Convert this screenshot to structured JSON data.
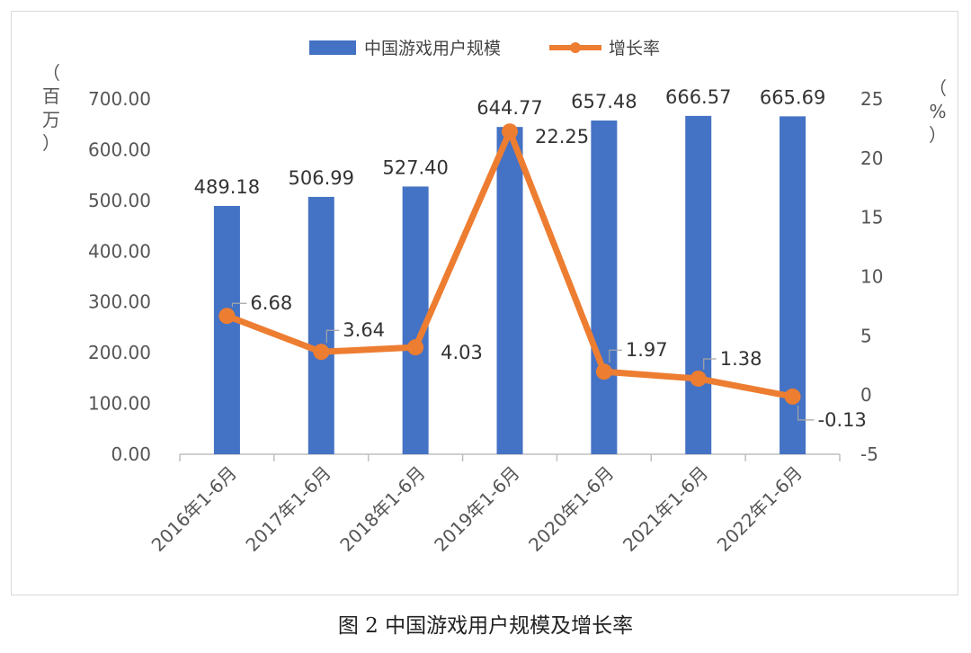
{
  "caption": "图 2 中国游戏用户规模及增长率",
  "chart_data": {
    "type": "bar+line",
    "categories": [
      "2016年1-6月",
      "2017年1-6月",
      "2018年1-6月",
      "2019年1-6月",
      "2020年1-6月",
      "2021年1-6月",
      "2022年1-6月"
    ],
    "series": [
      {
        "name": "中国游戏用户规模",
        "type": "bar",
        "axis": "left",
        "color": "#4472C4",
        "values": [
          489.18,
          506.99,
          527.4,
          644.77,
          657.48,
          666.57,
          665.69
        ],
        "labels": [
          "489.18",
          "506.99",
          "527.40",
          "644.77",
          "657.48",
          "666.57",
          "665.69"
        ]
      },
      {
        "name": "增长率",
        "type": "line",
        "axis": "right",
        "color": "#ED7D31",
        "values": [
          6.68,
          3.64,
          4.03,
          22.25,
          1.97,
          1.38,
          -0.13
        ],
        "labels": [
          "6.68",
          "3.64",
          "4.03",
          "22.25",
          "1.97",
          "1.38",
          "-0.13"
        ]
      }
    ],
    "y_left": {
      "unit_chars": [
        "（",
        "百",
        "万",
        "）"
      ],
      "range": [
        0,
        700
      ],
      "ticks": [
        "0.00",
        "100.00",
        "200.00",
        "300.00",
        "400.00",
        "500.00",
        "600.00",
        "700.00"
      ]
    },
    "y_right": {
      "unit_chars": [
        "（",
        "%",
        "）"
      ],
      "range": [
        -5,
        25
      ],
      "ticks": [
        "-5",
        "0",
        "5",
        "10",
        "15",
        "20",
        "25"
      ]
    },
    "grid": false,
    "legend_position": "top-center"
  }
}
